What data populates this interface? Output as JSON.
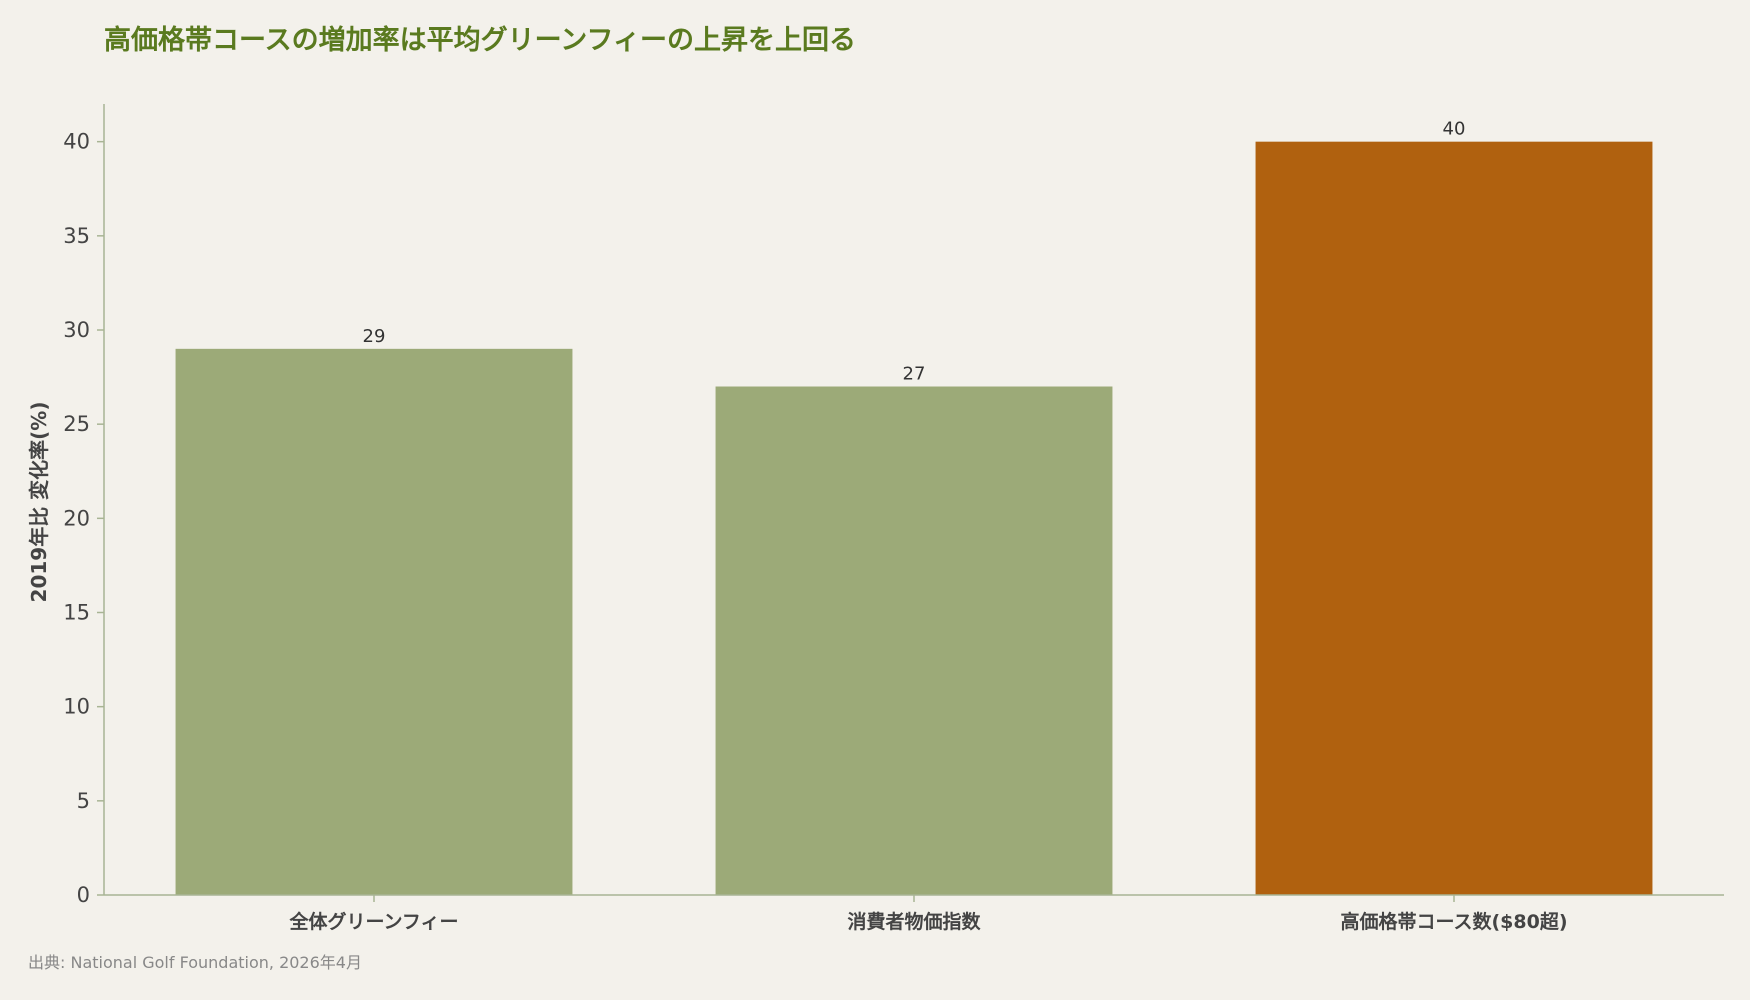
{
  "chart_data": {
    "type": "bar",
    "title": "高価格帯コースの増加率は平均グリーンフィーの上昇を上回る",
    "ylabel": "2019年比 変化率(%)",
    "xlabel": "",
    "categories": [
      "全体グリーンフィー",
      "消費者物価指数",
      "高価格帯コース数($80超)"
    ],
    "values": [
      29,
      27,
      40
    ],
    "colors": [
      "#9caa78",
      "#9caa78",
      "#b0610f"
    ],
    "ylim": [
      0,
      42
    ],
    "yticks": [
      0,
      5,
      10,
      15,
      20,
      25,
      30,
      35,
      40
    ],
    "grid": false,
    "source": "出典: National Golf Foundation, 2026年4月"
  },
  "colors": {
    "background": "#f3f1eb",
    "title": "#5a7a1f",
    "axis": "#a8b494"
  }
}
